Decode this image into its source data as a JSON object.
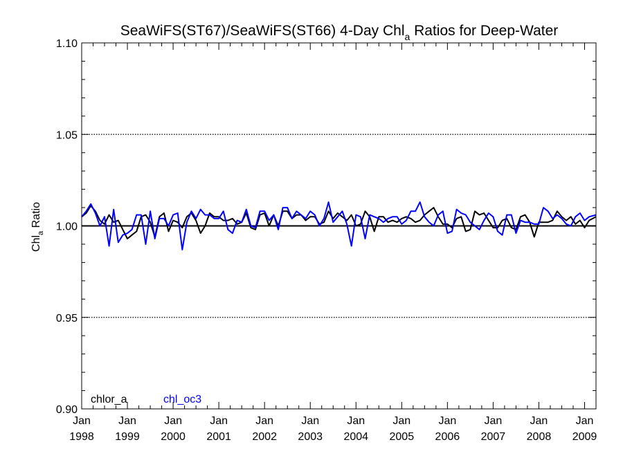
{
  "chart_data": {
    "type": "line",
    "title": {
      "prefix": "SeaWiFS(ST67)/SeaWiFS(ST66) 4-Day Chl",
      "subscript": "a",
      "suffix": " Ratios for Deep-Water"
    },
    "ylabel": {
      "main": "Chl",
      "subscript": "a",
      "suffix": " Ratio"
    },
    "xlabel": "",
    "ylim": [
      0.9,
      1.1
    ],
    "xlim": [
      1998.0,
      2009.25
    ],
    "yticks": [
      {
        "value": 0.9,
        "label": "0.90"
      },
      {
        "value": 0.95,
        "label": "0.95"
      },
      {
        "value": 1.0,
        "label": "1.00"
      },
      {
        "value": 1.05,
        "label": "1.05"
      },
      {
        "value": 1.1,
        "label": "1.10"
      }
    ],
    "xticks": [
      {
        "value": 1998,
        "month": "Jan",
        "year": "1998"
      },
      {
        "value": 1999,
        "month": "Jan",
        "year": "1999"
      },
      {
        "value": 2000,
        "month": "Jan",
        "year": "2000"
      },
      {
        "value": 2001,
        "month": "Jan",
        "year": "2001"
      },
      {
        "value": 2002,
        "month": "Jan",
        "year": "2002"
      },
      {
        "value": 2003,
        "month": "Jan",
        "year": "2003"
      },
      {
        "value": 2004,
        "month": "Jan",
        "year": "2004"
      },
      {
        "value": 2005,
        "month": "Jan",
        "year": "2005"
      },
      {
        "value": 2006,
        "month": "Jan",
        "year": "2006"
      },
      {
        "value": 2007,
        "month": "Jan",
        "year": "2007"
      },
      {
        "value": 2008,
        "month": "Jan",
        "year": "2008"
      },
      {
        "value": 2009,
        "month": "Jan",
        "year": "2009"
      }
    ],
    "gridlines_y": [
      0.95,
      1.05
    ],
    "reference_line_y": 1.0,
    "legend_placement": "bottom-left",
    "series": [
      {
        "name": "chlor_a",
        "color": "#000000",
        "x": [
          1998.0,
          1998.1,
          1998.2,
          1998.3,
          1998.4,
          1998.5,
          1998.6,
          1998.7,
          1998.8,
          1998.9,
          1999.0,
          1999.1,
          1999.2,
          1999.3,
          1999.4,
          1999.5,
          1999.6,
          1999.7,
          1999.8,
          1999.9,
          2000.0,
          2000.1,
          2000.2,
          2000.3,
          2000.4,
          2000.5,
          2000.6,
          2000.7,
          2000.8,
          2000.9,
          2001.0,
          2001.1,
          2001.2,
          2001.3,
          2001.4,
          2001.5,
          2001.6,
          2001.7,
          2001.8,
          2001.9,
          2002.0,
          2002.1,
          2002.2,
          2002.3,
          2002.4,
          2002.5,
          2002.6,
          2002.7,
          2002.8,
          2002.9,
          2003.0,
          2003.1,
          2003.2,
          2003.3,
          2003.4,
          2003.5,
          2003.6,
          2003.7,
          2003.8,
          2003.9,
          2004.0,
          2004.1,
          2004.2,
          2004.3,
          2004.4,
          2004.5,
          2004.6,
          2004.7,
          2004.8,
          2004.9,
          2005.0,
          2005.1,
          2005.2,
          2005.3,
          2005.4,
          2005.5,
          2005.6,
          2005.7,
          2005.8,
          2005.9,
          2006.0,
          2006.1,
          2006.2,
          2006.3,
          2006.4,
          2006.5,
          2006.6,
          2006.7,
          2006.8,
          2006.9,
          2007.0,
          2007.1,
          2007.2,
          2007.3,
          2007.4,
          2007.5,
          2007.6,
          2007.7,
          2007.8,
          2007.9,
          2008.0,
          2008.1,
          2008.2,
          2008.3,
          2008.4,
          2008.5,
          2008.6,
          2008.7,
          2008.8,
          2008.9,
          2009.0,
          2009.1,
          2009.25
        ],
        "y": [
          1.005,
          1.007,
          1.011,
          1.008,
          1.003,
          1.001,
          1.006,
          1.002,
          1.003,
          0.998,
          0.993,
          0.995,
          0.997,
          1.005,
          1.006,
          1.002,
          0.994,
          1.005,
          1.007,
          0.997,
          1.003,
          1.002,
          0.999,
          1.005,
          1.007,
          1.003,
          0.996,
          1.0,
          1.007,
          1.005,
          1.005,
          1.003,
          1.003,
          1.004,
          1.001,
          1.002,
          1.007,
          0.999,
          0.998,
          1.006,
          1.007,
          1.0,
          1.006,
          1.0,
          1.008,
          1.008,
          1.004,
          1.006,
          1.006,
          1.003,
          1.005,
          1.005,
          1.001,
          1.002,
          1.008,
          1.004,
          1.007,
          1.005,
          1.003,
          1.006,
          1.0,
          1.001,
          1.008,
          1.005,
          0.997,
          1.005,
          1.005,
          1.002,
          1.003,
          1.002,
          1.004,
          1.005,
          1.004,
          1.002,
          1.003,
          1.006,
          1.008,
          1.01,
          1.005,
          1.001,
          1.001,
          0.999,
          1.004,
          1.005,
          0.997,
          0.998,
          1.008,
          1.006,
          1.007,
          1.003,
          0.999,
          0.999,
          1.003,
          1.004,
          0.999,
          0.998,
          1.005,
          1.006,
          1.002,
          0.994,
          1.002,
          1.002,
          1.002,
          1.003,
          1.008,
          1.005,
          1.003,
          1.005,
          1.001,
          1.003,
          0.999,
          1.003,
          1.005
        ]
      },
      {
        "name": "chl_oc3",
        "color": "#0000ff",
        "x": [
          1998.0,
          1998.1,
          1998.2,
          1998.3,
          1998.4,
          1998.5,
          1998.6,
          1998.7,
          1998.8,
          1998.9,
          1999.0,
          1999.1,
          1999.2,
          1999.3,
          1999.4,
          1999.5,
          1999.6,
          1999.7,
          1999.8,
          1999.9,
          2000.0,
          2000.1,
          2000.2,
          2000.3,
          2000.4,
          2000.5,
          2000.6,
          2000.7,
          2000.8,
          2000.9,
          2001.0,
          2001.1,
          2001.2,
          2001.3,
          2001.4,
          2001.5,
          2001.6,
          2001.7,
          2001.8,
          2001.9,
          2002.0,
          2002.1,
          2002.2,
          2002.3,
          2002.4,
          2002.5,
          2002.6,
          2002.7,
          2002.8,
          2002.9,
          2003.0,
          2003.1,
          2003.2,
          2003.3,
          2003.4,
          2003.5,
          2003.6,
          2003.7,
          2003.8,
          2003.9,
          2004.0,
          2004.1,
          2004.2,
          2004.3,
          2004.4,
          2004.5,
          2004.6,
          2004.7,
          2004.8,
          2004.9,
          2005.0,
          2005.1,
          2005.2,
          2005.3,
          2005.4,
          2005.5,
          2005.6,
          2005.7,
          2005.8,
          2005.9,
          2006.0,
          2006.1,
          2006.2,
          2006.3,
          2006.4,
          2006.5,
          2006.6,
          2006.7,
          2006.8,
          2006.9,
          2007.0,
          2007.1,
          2007.2,
          2007.3,
          2007.4,
          2007.5,
          2007.6,
          2007.7,
          2007.8,
          2007.9,
          2008.0,
          2008.1,
          2008.2,
          2008.3,
          2008.4,
          2008.5,
          2008.6,
          2008.7,
          2008.8,
          2008.9,
          2009.0,
          2009.1,
          2009.25
        ],
        "y": [
          1.005,
          1.008,
          1.012,
          1.007,
          1.0,
          1.005,
          0.989,
          1.009,
          0.991,
          0.995,
          0.996,
          0.998,
          1.006,
          1.006,
          0.99,
          1.008,
          0.993,
          1.004,
          1.004,
          1.0,
          1.006,
          1.007,
          0.987,
          1.002,
          1.008,
          1.004,
          1.009,
          1.006,
          1.006,
          1.004,
          1.004,
          1.008,
          0.998,
          0.996,
          1.003,
          1.002,
          1.009,
          1.0,
          0.999,
          1.008,
          1.008,
          1.003,
          1.006,
          0.998,
          1.01,
          1.01,
          1.004,
          1.008,
          1.006,
          1.004,
          1.008,
          1.006,
          1.0,
          1.004,
          1.013,
          1.002,
          1.005,
          1.008,
          1.001,
          0.989,
          1.006,
          1.005,
          0.993,
          1.006,
          1.005,
          1.004,
          1.002,
          1.004,
          1.005,
          1.005,
          1.001,
          1.003,
          1.008,
          1.008,
          1.013,
          1.005,
          1.002,
          1.0,
          1.006,
          1.008,
          0.996,
          0.997,
          1.009,
          1.007,
          1.006,
          1.002,
          1.0,
          0.998,
          1.003,
          1.007,
          1.005,
          0.997,
          0.995,
          1.006,
          1.006,
          0.996,
          1.003,
          1.002,
          1.002,
          1.001,
          1.001,
          1.01,
          1.008,
          1.004,
          1.006,
          1.004,
          1.001,
          1.0,
          1.005,
          1.007,
          1.003,
          1.005,
          1.006
        ]
      }
    ]
  }
}
